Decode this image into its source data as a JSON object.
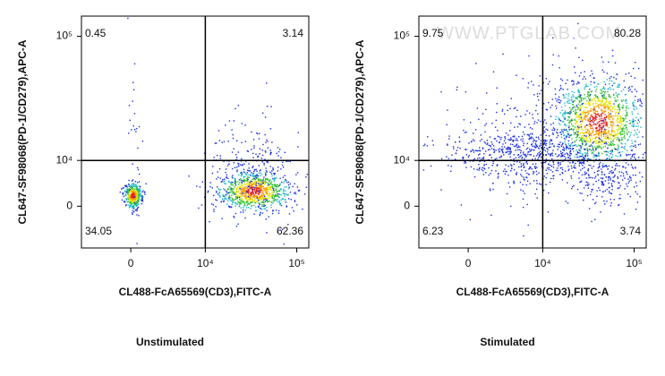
{
  "chart_data": [
    {
      "type": "quadrant",
      "x_label": "CL488-FcA65569(CD3),FITC-A",
      "y_label": "CL647-SF98068(PD-1/CD279),APC-A",
      "caption": "Unstimulated",
      "xlim": [
        -5000,
        135000
      ],
      "ylim": [
        -9000,
        140000
      ],
      "xticks": [
        0,
        {
          "value": 10000,
          "label": "10⁴"
        },
        {
          "value": 100000,
          "label": "10⁵"
        }
      ],
      "yticks": [
        0,
        {
          "value": 10000,
          "label": "10⁴"
        },
        {
          "value": 100000,
          "label": "10⁵"
        }
      ],
      "gate": {
        "x": 10000,
        "y": 10000
      },
      "quadrants": [
        {
          "corner": "top-left",
          "value": 0.45
        },
        {
          "corner": "top-right",
          "value": 3.14
        },
        {
          "corner": "bottom-left",
          "value": 34.05
        },
        {
          "corner": "bottom-right",
          "value": 62.36
        }
      ]
    },
    {
      "type": "quadrant",
      "x_label": "CL488-FcA65569(CD3),FITC-A",
      "y_label": "CL647-SF98068(PD-1/CD279),APC-A",
      "caption": "Stimulated",
      "watermark": "WWW.PTGLAB.COM",
      "xlim": [
        -5000,
        135000
      ],
      "ylim": [
        -9000,
        140000
      ],
      "xticks": [
        0,
        {
          "value": 10000,
          "label": "10⁴"
        },
        {
          "value": 100000,
          "label": "10⁵"
        }
      ],
      "yticks": [
        0,
        {
          "value": 10000,
          "label": "10⁴"
        },
        {
          "value": 100000,
          "label": "10⁵"
        }
      ],
      "gate": {
        "x": 10000,
        "y": 10000
      },
      "quadrants": [
        {
          "corner": "top-left",
          "value": 9.75
        },
        {
          "corner": "top-right",
          "value": 80.28
        },
        {
          "corner": "bottom-left",
          "value": 6.23
        },
        {
          "corner": "bottom-right",
          "value": 3.74
        }
      ]
    }
  ]
}
